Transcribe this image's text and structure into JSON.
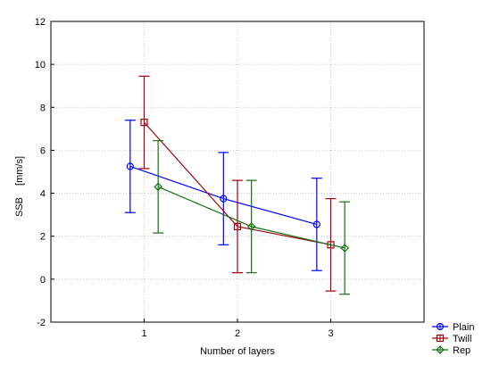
{
  "chart_data": {
    "type": "line",
    "xlabel": "Number of layers",
    "ylabel": "SSB",
    "ylabel_unit": "[mm/s]",
    "x_ticks": [
      1,
      2,
      3
    ],
    "y_ticks": [
      -2,
      0,
      2,
      4,
      6,
      8,
      10,
      12
    ],
    "xlim": [
      0,
      4
    ],
    "ylim": [
      -2,
      12
    ],
    "grid": true,
    "legend_position": "bottom-right",
    "series": [
      {
        "name": "Plain",
        "color": "#0000ff",
        "marker": "circle",
        "x": [
          0.85,
          1.85,
          2.85
        ],
        "y": [
          5.25,
          3.75,
          2.55
        ],
        "err_low": [
          3.1,
          1.6,
          0.4
        ],
        "err_high": [
          7.4,
          5.9,
          4.7
        ]
      },
      {
        "name": "Twill",
        "color": "#a0000f",
        "marker": "square",
        "x": [
          1.0,
          2.0,
          3.0
        ],
        "y": [
          7.3,
          2.45,
          1.6
        ],
        "err_low": [
          5.15,
          0.3,
          -0.55
        ],
        "err_high": [
          9.45,
          4.6,
          3.75
        ]
      },
      {
        "name": "Rep",
        "color": "#157015",
        "marker": "diamond",
        "x": [
          1.15,
          2.15,
          3.15
        ],
        "y": [
          4.3,
          2.45,
          1.45
        ],
        "err_low": [
          2.15,
          0.3,
          -0.7
        ],
        "err_high": [
          6.45,
          4.6,
          3.6
        ]
      }
    ]
  }
}
